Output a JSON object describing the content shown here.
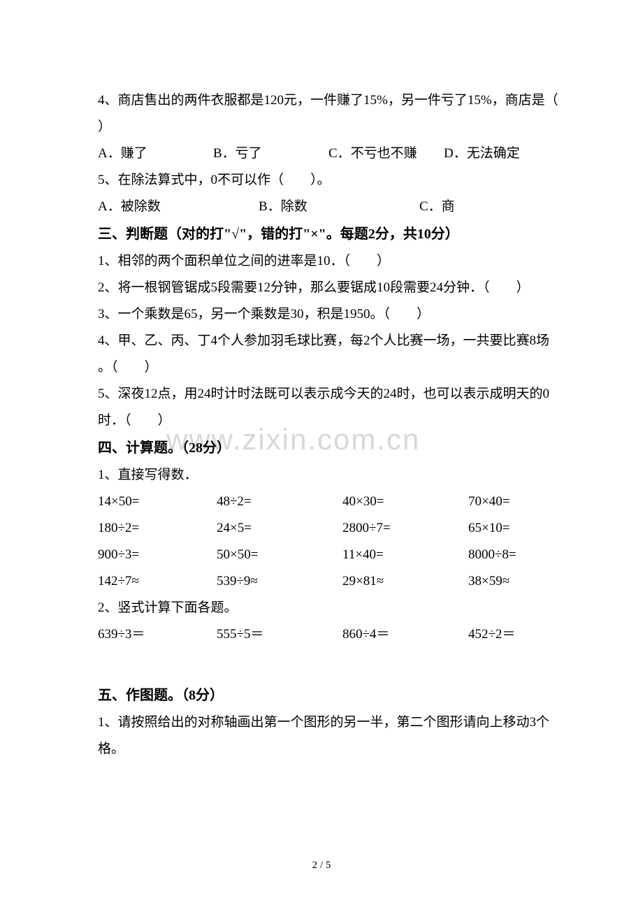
{
  "watermark": "www.zixin.com.cn",
  "q4": {
    "text": "4、商店售出的两件衣服都是120元，一件赚了15%，另一件亏了15%，商店是（",
    "close": "）",
    "optA": "A．赚了",
    "optB": "B．亏了",
    "optC": "C．不亏也不赚",
    "optD": "D．无法确定"
  },
  "q5": {
    "text": "5、在除法算式中，0不可以作（　　）。",
    "optA": "A．被除数",
    "optB": "B．除数",
    "optC": "C．商"
  },
  "section3": {
    "title": "三、判断题（对的打\"√\"，错的打\"×\"。每题2分，共10分）",
    "j1": "1、相邻的两个面积单位之间的进率是10．（　　）",
    "j2": "2、将一根钢管锯成5段需要12分钟，那么要锯成10段需要24分钟．（　　）",
    "j3": "3、一个乘数是65，另一个乘数是30，积是1950。（　　）",
    "j4a": "4、甲、乙、丙、丁4个人参加羽毛球比赛，每2个人比赛一场，一共要比赛8场",
    "j4b": "。（　　）",
    "j5a": "5、深夜12点，用24时计时法既可以表示成今天的24时，也可以表示成明天的0",
    "j5b": "时．（　　）"
  },
  "section4": {
    "title": "四、计算题。（28分）",
    "p1": "1、直接写得数．",
    "r1": {
      "c1": "14×50=",
      "c2": "48÷2=",
      "c3": "40×30=",
      "c4": "70×40="
    },
    "r2": {
      "c1": "180÷2=",
      "c2": "24×5=",
      "c3": "2800÷7=",
      "c4": "65×10="
    },
    "r3": {
      "c1": "900÷3=",
      "c2": "50×50=",
      "c3": "11×40=",
      "c4": "8000÷8="
    },
    "r4": {
      "c1": "142÷7≈",
      "c2": "539÷9≈",
      "c3": "29×81≈",
      "c4": "38×59≈"
    },
    "p2": "2、竖式计算下面各题。",
    "r5": {
      "c1": "639÷3＝",
      "c2": "555÷5＝",
      "c3": "860÷4＝",
      "c4": "452÷2＝"
    }
  },
  "section5": {
    "title": "五、作图题。（8分）",
    "p1a": "1、请按照给出的对称轴画出第一个图形的另一半，第二个图形请向上移动3个",
    "p1b": "格。"
  },
  "pageNum": "2 / 5"
}
